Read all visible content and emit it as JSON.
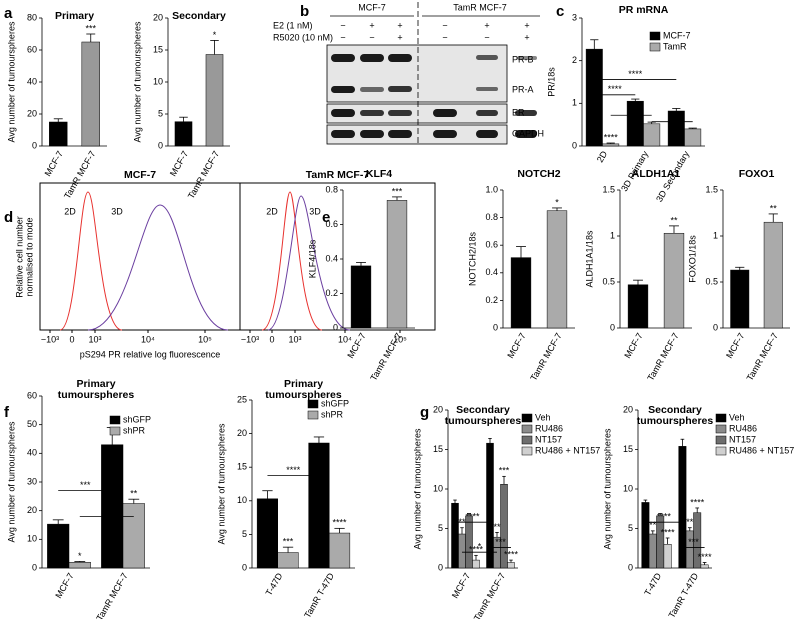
{
  "panel_letters": [
    "a",
    "b",
    "c",
    "d",
    "e",
    "f",
    "g"
  ],
  "blot": {
    "groups": [
      "MCF-7",
      "TamR MCF-7"
    ],
    "treatments": [
      {
        "name": "E2 (1 nM)",
        "signs": [
          "−",
          "+",
          "+",
          "−",
          "+",
          "+"
        ]
      },
      {
        "name": "R5020 (10 nM)",
        "signs": [
          "−",
          "−",
          "+",
          "−",
          "−",
          "+"
        ]
      }
    ],
    "bands": [
      "PR-B",
      "PR-A",
      "ER",
      "GAPDH"
    ]
  },
  "flow": {
    "panels": [
      {
        "title": "MCF-7",
        "labels": [
          "2D",
          "3D"
        ],
        "xticks": [
          "−10³",
          "0",
          "10³",
          "10⁴",
          "10⁵"
        ]
      },
      {
        "title": "TamR MCF-7",
        "labels": [
          "2D",
          "3D"
        ],
        "xticks": [
          "−10³",
          "0",
          "10³",
          "10⁴",
          "10⁵"
        ]
      }
    ],
    "ylabel": [
      "Relative cell number",
      "normalised to mode"
    ],
    "xlabel": "pS294 PR relative log fluorescence"
  },
  "chart_data": [
    {
      "type": "bar",
      "title": "Primary",
      "ylabel": "Avg number of tumourspheres",
      "categories": [
        "MCF-7",
        "TamR MCF-7"
      ],
      "values": [
        15,
        65
      ],
      "errors": [
        2,
        5
      ],
      "stars": [
        null,
        "***"
      ],
      "colors": [
        "#000000",
        "#999999"
      ],
      "ylim": [
        0,
        80
      ],
      "yticks": [
        0,
        20,
        40,
        60,
        80
      ]
    },
    {
      "type": "bar",
      "title": "Secondary",
      "ylabel": "Avg number of tumourspheres",
      "categories": [
        "MCF-7",
        "TamR MCF-7"
      ],
      "values": [
        3.8,
        14.3
      ],
      "errors": [
        0.7,
        2.2
      ],
      "stars": [
        null,
        "*"
      ],
      "colors": [
        "#000000",
        "#999999"
      ],
      "ylim": [
        0,
        20
      ],
      "yticks": [
        0,
        5,
        10,
        15,
        20
      ]
    },
    {
      "type": "bar",
      "title": "PR mRNA",
      "ylabel": "PR/18s",
      "categories": [
        "2D",
        "3D Primary",
        "3D Secondary"
      ],
      "series": [
        {
          "name": "MCF-7",
          "color": "#000000",
          "values": [
            2.27,
            1.05,
            0.82
          ],
          "errors": [
            0.22,
            0.05,
            0.06
          ],
          "stars": [
            null,
            null,
            null
          ]
        },
        {
          "name": "TamR",
          "color": "#aaaaaa",
          "values": [
            0.05,
            0.52,
            0.4
          ],
          "errors": [
            0.02,
            0.04,
            0.02
          ],
          "stars": [
            "****",
            null,
            null
          ]
        }
      ],
      "brackets": [
        {
          "label": "****"
        },
        {
          "label": "****"
        },
        {
          "label": "*"
        },
        {
          "label": "*"
        }
      ],
      "ylim": [
        0,
        3
      ],
      "yticks": [
        0,
        1,
        2,
        3
      ]
    },
    {
      "type": "bar",
      "title": "KLF4",
      "ylabel": "KLF4/18s",
      "categories": [
        "MCF-7",
        "TamR MCF-7"
      ],
      "values": [
        0.36,
        0.74
      ],
      "errors": [
        0.02,
        0.02
      ],
      "stars": [
        null,
        "***"
      ],
      "colors": [
        "#000000",
        "#aaaaaa"
      ],
      "ylim": [
        0,
        0.8
      ],
      "yticks": [
        0,
        0.2,
        0.4,
        0.6,
        0.8
      ]
    },
    {
      "type": "bar",
      "title": "NOTCH2",
      "ylabel": "NOTCH2/18s",
      "categories": [
        "MCF-7",
        "TamR MCF-7"
      ],
      "values": [
        0.51,
        0.85
      ],
      "errors": [
        0.08,
        0.02
      ],
      "stars": [
        null,
        "*"
      ],
      "colors": [
        "#000000",
        "#aaaaaa"
      ],
      "ylim": [
        0,
        1
      ],
      "yticks": [
        0,
        0.2,
        0.4,
        0.6,
        0.8,
        {
          "value": 1,
          "label": "1.0"
        }
      ]
    },
    {
      "type": "bar",
      "title": "ALDH1A1",
      "ylabel": "ALDH1A1/18s",
      "categories": [
        "MCF-7",
        "TamR MCF-7"
      ],
      "values": [
        0.47,
        1.03
      ],
      "errors": [
        0.05,
        0.08
      ],
      "stars": [
        null,
        "**"
      ],
      "colors": [
        "#000000",
        "#aaaaaa"
      ],
      "ylim": [
        0,
        1.5
      ],
      "yticks": [
        0,
        0.5,
        1,
        1.5
      ]
    },
    {
      "type": "bar",
      "title": "FOXO1",
      "ylabel": "FOXO1/18s",
      "categories": [
        "MCF-7",
        "TamR MCF-7"
      ],
      "values": [
        0.63,
        1.15
      ],
      "errors": [
        0.03,
        0.09
      ],
      "stars": [
        null,
        "**"
      ],
      "colors": [
        "#000000",
        "#aaaaaa"
      ],
      "ylim": [
        0,
        1.5
      ],
      "yticks": [
        0,
        0.5,
        1,
        1.5
      ]
    },
    {
      "type": "bar",
      "title": [
        "Primary",
        "tumourspheres"
      ],
      "ylabel": "Avg number of tumourspheres",
      "categories": [
        "MCF-7",
        "TamR MCF-7"
      ],
      "series": [
        {
          "name": "shGFP",
          "color": "#000000",
          "values": [
            15.3,
            43
          ],
          "errors": [
            1.5,
            6
          ],
          "stars": [
            null,
            null
          ]
        },
        {
          "name": "shPR",
          "color": "#aaaaaa",
          "values": [
            2,
            22.5
          ],
          "errors": [
            0.3,
            1.5
          ],
          "stars": [
            "*",
            "**"
          ]
        }
      ],
      "brackets": [
        {
          "label": "***"
        },
        {
          "label": "**"
        }
      ],
      "ylim": [
        0,
        60
      ],
      "yticks": [
        0,
        10,
        20,
        30,
        40,
        50,
        60
      ]
    },
    {
      "type": "bar",
      "title": [
        "Primary",
        "tumourspheres"
      ],
      "ylabel": "Avg number of tumourspheres",
      "categories": [
        "T-47D",
        "TamR T-47D"
      ],
      "series": [
        {
          "name": "shGFP",
          "color": "#000000",
          "values": [
            10.3,
            18.6
          ],
          "errors": [
            1.2,
            0.9
          ],
          "stars": [
            null,
            null
          ]
        },
        {
          "name": "shPR",
          "color": "#aaaaaa",
          "values": [
            2.3,
            5.2
          ],
          "errors": [
            0.8,
            0.7
          ],
          "stars": [
            "***",
            "****"
          ]
        }
      ],
      "brackets": [
        {
          "label": "****"
        }
      ],
      "ylim": [
        0,
        25
      ],
      "yticks": [
        0,
        5,
        10,
        15,
        20,
        25
      ]
    },
    {
      "type": "bar",
      "title": [
        "Secondary",
        "tumourspheres"
      ],
      "ylabel": "Avg number of tumourspheres",
      "categories": [
        "MCF-7",
        "TamR MCF-7"
      ],
      "series": [
        {
          "name": "Veh",
          "color": "#000000",
          "values": [
            8.2,
            15.8
          ],
          "errors": [
            0.4,
            0.6
          ],
          "stars": [
            null,
            null
          ]
        },
        {
          "name": "RU486",
          "color": "#8c8c8c",
          "values": [
            4.3,
            3.9
          ],
          "errors": [
            0.8,
            0.6
          ],
          "stars": [
            "**",
            "****"
          ]
        },
        {
          "name": "NT157",
          "color": "#6e6e6e",
          "values": [
            6.6,
            10.6
          ],
          "errors": [
            0.3,
            1
          ],
          "stars": [
            null,
            "***"
          ]
        },
        {
          "name": "RU486 + NT157",
          "color": "#d0d0d0",
          "values": [
            1,
            0.7
          ],
          "errors": [
            0.6,
            0.3
          ],
          "stars": [
            "****",
            "****"
          ]
        }
      ],
      "brackets": [
        {
          "label": "****"
        },
        {
          "label": "*"
        },
        {
          "label": "***"
        }
      ],
      "ylim": [
        0,
        20
      ],
      "yticks": [
        0,
        5,
        10,
        15,
        20
      ]
    },
    {
      "type": "bar",
      "title": [
        "Secondary",
        "tumourspheres"
      ],
      "ylabel": "Avg number of tumourspheres",
      "categories": [
        "T-47D",
        "TamR T-47D"
      ],
      "series": [
        {
          "name": "Veh",
          "color": "#000000",
          "values": [
            8.3,
            15.4
          ],
          "errors": [
            0.3,
            0.9
          ],
          "stars": [
            null,
            null
          ]
        },
        {
          "name": "RU486",
          "color": "#8c8c8c",
          "values": [
            4.3,
            4.7
          ],
          "errors": [
            0.4,
            0.4
          ],
          "stars": [
            "**",
            "****"
          ]
        },
        {
          "name": "NT157",
          "color": "#6e6e6e",
          "values": [
            6.6,
            7
          ],
          "errors": [
            0.3,
            0.6
          ],
          "stars": [
            null,
            "****"
          ]
        },
        {
          "name": "RU486 + NT157",
          "color": "#d0d0d0",
          "values": [
            3,
            0.4
          ],
          "errors": [
            0.8,
            0.3
          ],
          "stars": [
            "****",
            "****"
          ]
        }
      ],
      "brackets": [
        {
          "label": "****"
        },
        {
          "label": "***"
        }
      ],
      "ylim": [
        0,
        20
      ],
      "yticks": [
        0,
        5,
        10,
        15,
        20
      ]
    }
  ]
}
